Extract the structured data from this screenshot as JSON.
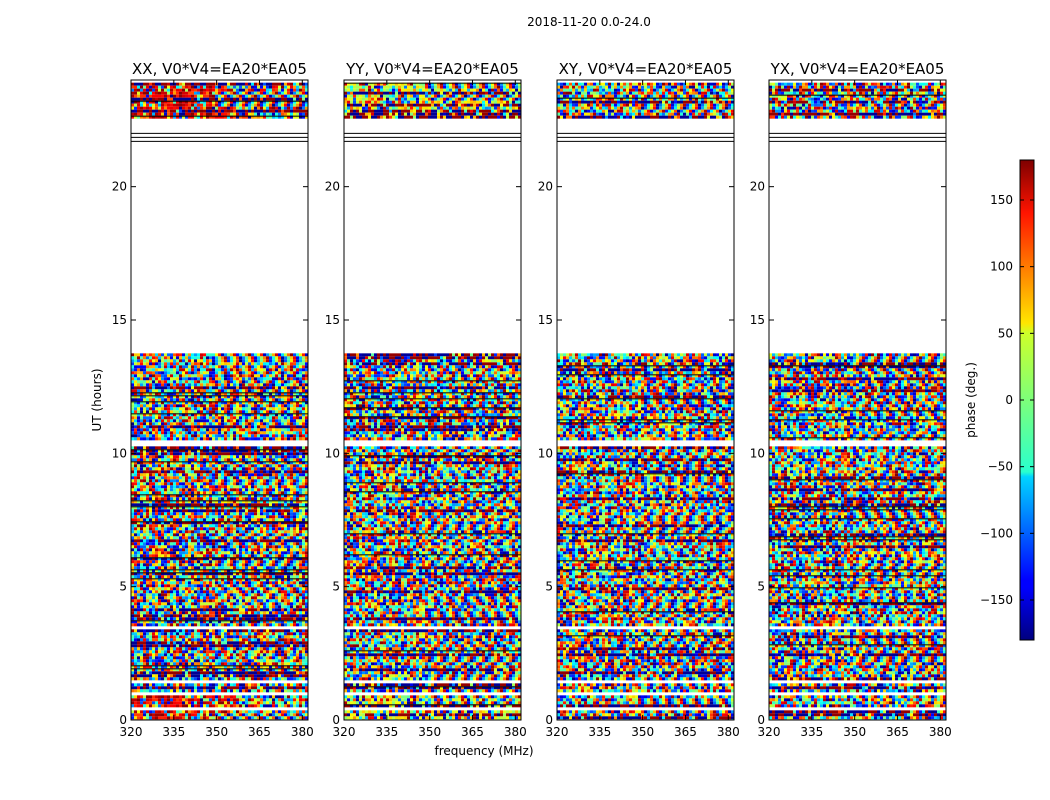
{
  "chart_data": {
    "type": "heatmap",
    "suptitle": "2018-11-20 0.0-24.0",
    "xlabel": "frequency (MHz)",
    "ylabel": "UT (hours)",
    "xlim": [
      320,
      382
    ],
    "ylim": [
      0,
      24
    ],
    "xticks": [
      320,
      335,
      350,
      365,
      380
    ],
    "yticks": [
      0,
      5,
      10,
      15,
      20
    ],
    "panels": [
      {
        "title": "XX, V0*V4=EA20*EA05",
        "correlation": "XX"
      },
      {
        "title": "YY, V0*V4=EA20*EA05",
        "correlation": "YY"
      },
      {
        "title": "XY, V0*V4=EA20*EA05",
        "correlation": "XY"
      },
      {
        "title": "YX, V0*V4=EA20*EA05",
        "correlation": "YX"
      }
    ],
    "data_coverage_hours": [
      {
        "start": 0.0,
        "end": 13.75,
        "note": "flagged gaps near 0.5, 1.0, 1.5, 3.5, 10.4 h"
      },
      {
        "start": 22.6,
        "end": 23.9
      }
    ],
    "flag_lines_hours": [
      21.7,
      21.85,
      22.0
    ],
    "colorbar": {
      "label": "phase (deg.)",
      "range": [
        -180,
        180
      ],
      "ticks": [
        150,
        100,
        50,
        0,
        -50,
        -100,
        -150
      ],
      "tick_labels": [
        "150",
        "100",
        "50",
        "0",
        "−50",
        "−100",
        "−150"
      ],
      "colormap": "jet"
    }
  }
}
